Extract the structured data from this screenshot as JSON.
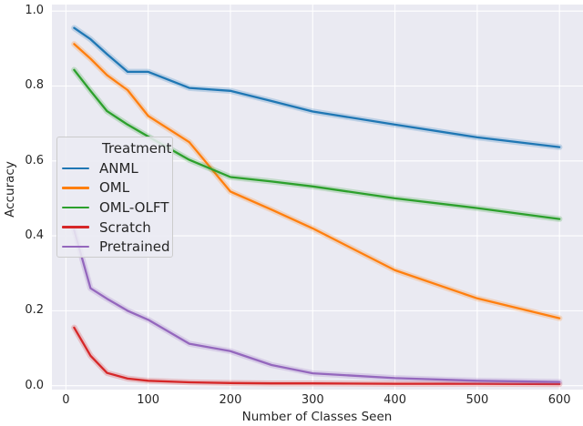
{
  "figure": {
    "background": "#ffffff",
    "plot_background": "#eaeaf2",
    "grid_color": "#ffffff",
    "text_color": "#262626"
  },
  "chart_data": {
    "type": "line",
    "title": "",
    "xlabel": "Number of Classes Seen",
    "ylabel": "Accuracy",
    "grid": true,
    "legend": {
      "title": "Treatment",
      "position": "upper left inside"
    },
    "xlim": [
      -17,
      628.6
    ],
    "ylim": [
      -0.0105,
      1.0175
    ],
    "xticks": {
      "values": [
        0,
        100,
        200,
        300,
        400,
        500,
        600
      ],
      "labels": [
        "0",
        "100",
        "200",
        "300",
        "400",
        "500",
        "600"
      ]
    },
    "yticks": {
      "values": [
        0.0,
        0.2,
        0.4,
        0.6,
        0.8,
        1.0
      ],
      "labels": [
        "0.0",
        "0.2",
        "0.4",
        "0.6",
        "0.8",
        "1.0"
      ]
    },
    "x": [
      10,
      30,
      50,
      75,
      100,
      150,
      200,
      250,
      300,
      400,
      500,
      600
    ],
    "series": [
      {
        "name": "ANML",
        "color": "#1f77b4",
        "values": [
          0.955,
          0.925,
          0.885,
          0.838,
          0.838,
          0.795,
          0.787,
          0.76,
          0.732,
          0.697,
          0.663,
          0.637
        ]
      },
      {
        "name": "OML",
        "color": "#ff7f0e",
        "values": [
          0.912,
          0.873,
          0.829,
          0.789,
          0.72,
          0.65,
          0.518,
          0.47,
          0.42,
          0.308,
          0.233,
          0.18
        ]
      },
      {
        "name": "OML-OLFT",
        "color": "#2ca02c",
        "values": [
          0.843,
          0.787,
          0.733,
          0.697,
          0.665,
          0.603,
          0.557,
          0.545,
          0.532,
          0.5,
          0.474,
          0.445
        ]
      },
      {
        "name": "Scratch",
        "color": "#d62728",
        "values": [
          0.155,
          0.08,
          0.034,
          0.019,
          0.013,
          0.009,
          0.007,
          0.006,
          0.006,
          0.005,
          0.005,
          0.004
        ]
      },
      {
        "name": "Pretrained",
        "color": "#9467bd",
        "values": [
          0.415,
          0.26,
          0.232,
          0.2,
          0.176,
          0.112,
          0.092,
          0.055,
          0.033,
          0.02,
          0.013,
          0.01
        ]
      }
    ]
  }
}
